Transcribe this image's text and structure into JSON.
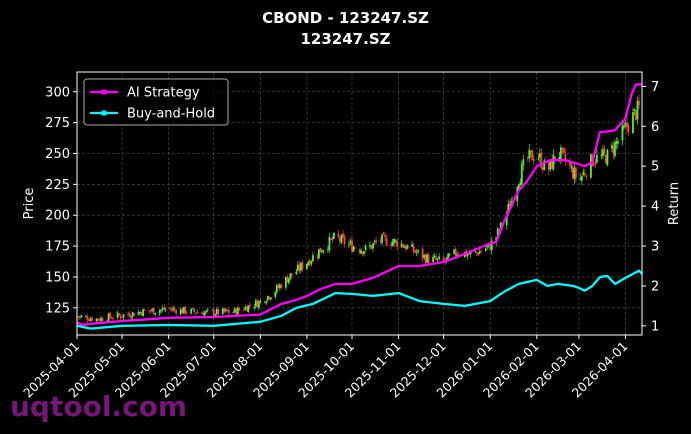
{
  "chart_data": {
    "type": "line",
    "title": "CBOND - 123247.SZ",
    "subtitle": "123247.SZ",
    "ylabel": "Price",
    "y2label": "Return",
    "xlabel": "",
    "grid": true,
    "legend_position": "top-left",
    "x_ticks": [
      "2025-04-01",
      "2025-05-01",
      "2025-06-01",
      "2025-07-01",
      "2025-08-01",
      "2025-09-01",
      "2025-10-01",
      "2025-11-01",
      "2025-12-01",
      "2026-01-01",
      "2026-02-01",
      "2026-03-01",
      "2026-04-01"
    ],
    "y_ticks": [
      125,
      150,
      175,
      200,
      225,
      250,
      275,
      300
    ],
    "y2_ticks": [
      1,
      2,
      3,
      4,
      5,
      6,
      7
    ],
    "ylim": [
      103,
      316
    ],
    "y2lim": [
      0.77,
      7.36
    ],
    "xlim": [
      "2025-04-01",
      "2026-04-12"
    ],
    "candles": {
      "up_color": "#55ee33",
      "down_color": "#ff4444",
      "close_path": [
        [
          "2025-04-01",
          118
        ],
        [
          "2025-04-15",
          116
        ],
        [
          "2025-05-01",
          119
        ],
        [
          "2025-05-15",
          122
        ],
        [
          "2025-06-01",
          124
        ],
        [
          "2025-06-15",
          122
        ],
        [
          "2025-07-01",
          121
        ],
        [
          "2025-07-15",
          122
        ],
        [
          "2025-08-01",
          130
        ],
        [
          "2025-08-10",
          138
        ],
        [
          "2025-08-20",
          150
        ],
        [
          "2025-09-01",
          162
        ],
        [
          "2025-09-10",
          172
        ],
        [
          "2025-09-20",
          182
        ],
        [
          "2025-10-01",
          175
        ],
        [
          "2025-10-10",
          172
        ],
        [
          "2025-10-20",
          180
        ],
        [
          "2025-11-01",
          178
        ],
        [
          "2025-11-10",
          172
        ],
        [
          "2025-11-20",
          165
        ],
        [
          "2025-12-01",
          162
        ],
        [
          "2025-12-10",
          170
        ],
        [
          "2025-12-20",
          168
        ],
        [
          "2026-01-01",
          175
        ],
        [
          "2026-01-05",
          183
        ],
        [
          "2026-01-10",
          195
        ],
        [
          "2026-01-15",
          212
        ],
        [
          "2026-01-20",
          230
        ],
        [
          "2026-01-25",
          245
        ],
        [
          "2026-02-01",
          250
        ],
        [
          "2026-02-08",
          235
        ],
        [
          "2026-02-15",
          252
        ],
        [
          "2026-02-22",
          240
        ],
        [
          "2026-03-01",
          228
        ],
        [
          "2026-03-10",
          245
        ],
        [
          "2026-03-20",
          248
        ],
        [
          "2026-03-28",
          262
        ],
        [
          "2026-04-05",
          278
        ],
        [
          "2026-04-12",
          290
        ]
      ]
    },
    "series": [
      {
        "name": "AI Strategy",
        "color": "#ff00ff",
        "axis": "right",
        "points": [
          [
            "2025-04-01",
            1.08
          ],
          [
            "2025-04-05",
            1.02
          ],
          [
            "2025-04-10",
            1.05
          ],
          [
            "2025-05-01",
            1.12
          ],
          [
            "2025-06-01",
            1.2
          ],
          [
            "2025-07-01",
            1.22
          ],
          [
            "2025-08-01",
            1.28
          ],
          [
            "2025-08-15",
            1.55
          ],
          [
            "2025-08-25",
            1.65
          ],
          [
            "2025-09-01",
            1.75
          ],
          [
            "2025-09-10",
            1.92
          ],
          [
            "2025-09-20",
            2.05
          ],
          [
            "2025-10-01",
            2.05
          ],
          [
            "2025-10-15",
            2.2
          ],
          [
            "2025-11-01",
            2.5
          ],
          [
            "2025-11-15",
            2.5
          ],
          [
            "2025-12-01",
            2.6
          ],
          [
            "2025-12-15",
            2.8
          ],
          [
            "2025-12-31",
            3.05
          ],
          [
            "2026-01-05",
            3.1
          ],
          [
            "2026-01-10",
            3.6
          ],
          [
            "2026-01-15",
            4.0
          ],
          [
            "2026-01-20",
            4.4
          ],
          [
            "2026-01-25",
            4.6
          ],
          [
            "2026-02-01",
            5.0
          ],
          [
            "2026-02-10",
            5.15
          ],
          [
            "2026-02-20",
            5.15
          ],
          [
            "2026-03-01",
            5.05
          ],
          [
            "2026-03-05",
            5.0
          ],
          [
            "2026-03-10",
            5.1
          ],
          [
            "2026-03-15",
            5.85
          ],
          [
            "2026-03-25",
            5.9
          ],
          [
            "2026-04-01",
            6.2
          ],
          [
            "2026-04-05",
            6.8
          ],
          [
            "2026-04-08",
            7.05
          ],
          [
            "2026-04-12",
            7.05
          ]
        ]
      },
      {
        "name": "Buy-and-Hold",
        "color": "#00ffff",
        "axis": "right",
        "points": [
          [
            "2025-04-01",
            1.0
          ],
          [
            "2025-04-10",
            0.93
          ],
          [
            "2025-05-01",
            1.0
          ],
          [
            "2025-06-01",
            1.02
          ],
          [
            "2025-07-01",
            1.0
          ],
          [
            "2025-08-01",
            1.1
          ],
          [
            "2025-08-15",
            1.25
          ],
          [
            "2025-08-25",
            1.45
          ],
          [
            "2025-09-05",
            1.55
          ],
          [
            "2025-09-20",
            1.82
          ],
          [
            "2025-10-01",
            1.8
          ],
          [
            "2025-10-15",
            1.75
          ],
          [
            "2025-11-01",
            1.82
          ],
          [
            "2025-11-15",
            1.62
          ],
          [
            "2025-12-01",
            1.55
          ],
          [
            "2025-12-15",
            1.5
          ],
          [
            "2026-01-01",
            1.62
          ],
          [
            "2026-01-10",
            1.85
          ],
          [
            "2026-01-20",
            2.05
          ],
          [
            "2026-02-01",
            2.15
          ],
          [
            "2026-02-08",
            2.0
          ],
          [
            "2026-02-15",
            2.05
          ],
          [
            "2026-02-25",
            2.0
          ],
          [
            "2026-03-01",
            1.95
          ],
          [
            "2026-03-05",
            1.88
          ],
          [
            "2026-03-10",
            2.0
          ],
          [
            "2026-03-15",
            2.22
          ],
          [
            "2026-03-20",
            2.25
          ],
          [
            "2026-03-25",
            2.05
          ],
          [
            "2026-04-01",
            2.2
          ],
          [
            "2026-04-06",
            2.3
          ],
          [
            "2026-04-10",
            2.38
          ],
          [
            "2026-04-12",
            2.3
          ]
        ]
      }
    ]
  },
  "watermark": "uqtool.com",
  "colors": {
    "background": "#000000",
    "axis": "#ffffff",
    "grid": "#555555"
  }
}
